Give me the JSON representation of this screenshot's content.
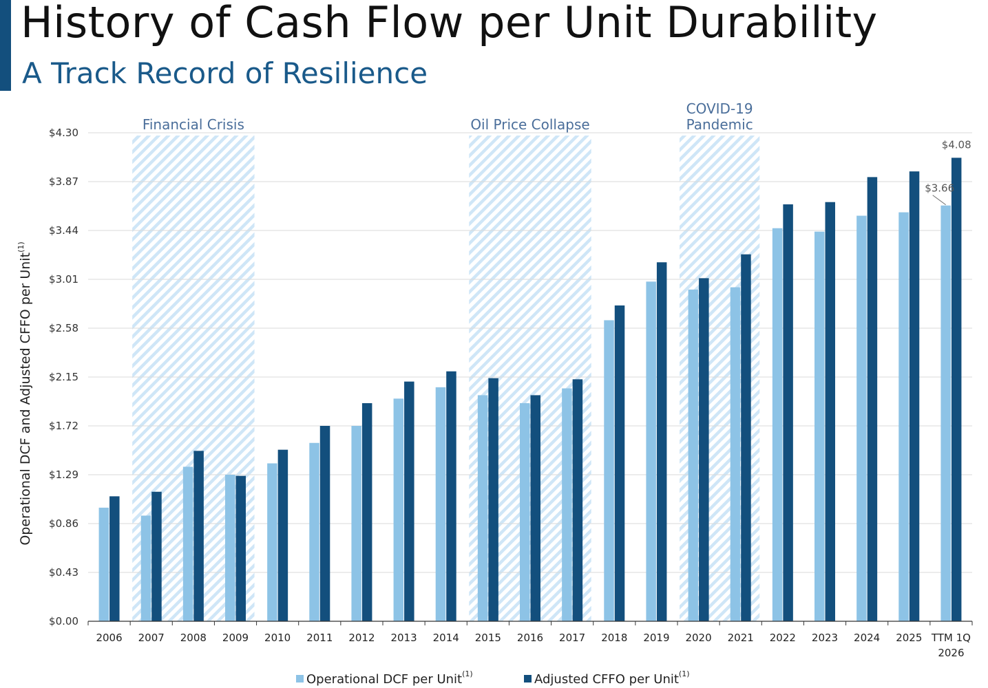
{
  "header": {
    "title": "History of Cash Flow per Unit Durability",
    "subtitle": "A Track Record of Resilience"
  },
  "chart_data": {
    "type": "bar",
    "title": "",
    "xlabel": "",
    "ylabel": "Operational DCF and Adjusted CFFO per Unit",
    "ylabel_footnote": "(1)",
    "ylim": [
      0,
      4.3
    ],
    "yticks": [
      "$0.00",
      "$0.43",
      "$0.86",
      "$1.29",
      "$1.72",
      "$2.15",
      "$2.58",
      "$3.01",
      "$3.44",
      "$3.87",
      "$4.30"
    ],
    "categories": [
      "2006",
      "2007",
      "2008",
      "2009",
      "2010",
      "2011",
      "2012",
      "2013",
      "2014",
      "2015",
      "2016",
      "2017",
      "2018",
      "2019",
      "2020",
      "2021",
      "2022",
      "2023",
      "2024",
      "2025",
      "TTM 1Q 2026"
    ],
    "series": [
      {
        "name": "Operational DCF per Unit",
        "footnote": "(1)",
        "color": "#8dc3e6",
        "values": [
          1.0,
          0.93,
          1.36,
          1.29,
          1.39,
          1.57,
          1.72,
          1.96,
          2.06,
          1.99,
          1.92,
          2.05,
          2.65,
          2.99,
          2.92,
          2.94,
          3.46,
          3.43,
          3.57,
          3.6,
          3.66
        ]
      },
      {
        "name": "Adjusted CFFO per Unit",
        "footnote": "(1)",
        "color": "#134f7d",
        "values": [
          1.1,
          1.14,
          1.5,
          1.28,
          1.51,
          1.72,
          1.92,
          2.11,
          2.2,
          2.14,
          1.99,
          2.13,
          2.78,
          3.16,
          3.02,
          3.23,
          3.67,
          3.69,
          3.91,
          3.96,
          4.08
        ]
      }
    ],
    "annotations": [
      {
        "text": "$4.08",
        "category": "TTM 1Q 2026",
        "series": "Adjusted CFFO per Unit",
        "value": 4.08
      },
      {
        "text": "$3.66",
        "category": "TTM 1Q 2026",
        "series": "Operational DCF per Unit",
        "value": 3.66
      }
    ],
    "shaded_periods": [
      {
        "label": "Financial Crisis",
        "label_lines": [
          "Financial Crisis"
        ],
        "from": "2007",
        "to": "2009"
      },
      {
        "label": "Oil Price Collapse",
        "label_lines": [
          "Oil Price Collapse"
        ],
        "from": "2015",
        "to": "2017"
      },
      {
        "label": "COVID-19 Pandemic",
        "label_lines": [
          "COVID-19",
          "Pandemic"
        ],
        "from": "2020",
        "to": "2021"
      }
    ],
    "grid": true,
    "legend_position": "bottom"
  }
}
